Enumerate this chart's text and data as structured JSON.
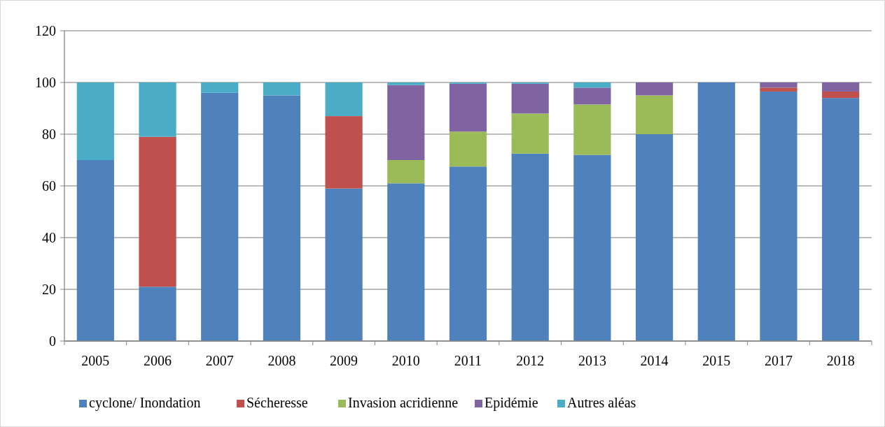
{
  "chart_data": {
    "type": "bar",
    "stacked": true,
    "categories": [
      "2005",
      "2006",
      "2007",
      "2008",
      "2009",
      "2010",
      "2011",
      "2012",
      "2013",
      "2014",
      "2015",
      "2017",
      "2018"
    ],
    "series": [
      {
        "name": "cyclone/ Inondation",
        "color": "#4f81bd",
        "values": [
          70,
          21,
          96,
          95,
          59,
          61,
          67.5,
          72.5,
          72,
          80,
          100,
          96.5,
          94
        ]
      },
      {
        "name": "Sécheresse",
        "color": "#c0504d",
        "values": [
          0,
          58,
          0,
          0,
          28,
          0,
          0,
          0,
          0,
          0,
          0,
          1.5,
          2.5
        ]
      },
      {
        "name": "Invasion acridienne",
        "color": "#9bbb59",
        "values": [
          0,
          0,
          0,
          0,
          0,
          9,
          13.5,
          15.5,
          19.5,
          15,
          0,
          0,
          0
        ]
      },
      {
        "name": "Epidémie",
        "color": "#8064a2",
        "values": [
          0,
          0,
          0,
          0,
          0,
          29,
          18.5,
          11.5,
          6.5,
          5,
          0,
          2,
          3.5
        ]
      },
      {
        "name": "Autres aléas",
        "color": "#4bacc6",
        "values": [
          30,
          21,
          4,
          5,
          13,
          1,
          0.5,
          0.5,
          2,
          0,
          0,
          0,
          0
        ]
      }
    ],
    "ylim": [
      0,
      120
    ],
    "yticks": [
      0,
      20,
      40,
      60,
      80,
      100,
      120
    ],
    "grid": "y",
    "legend": "bottom"
  }
}
